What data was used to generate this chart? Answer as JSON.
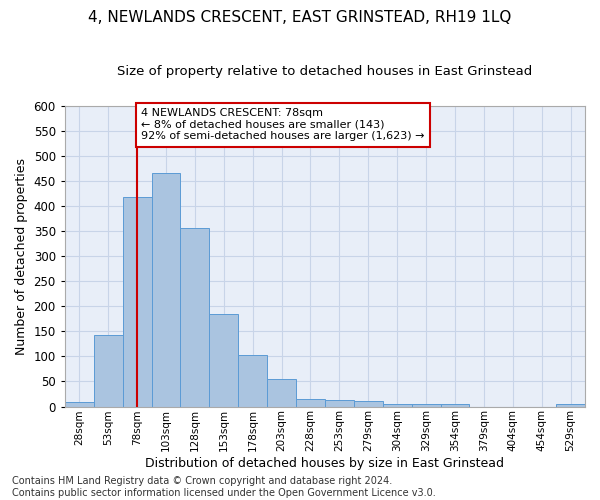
{
  "title": "4, NEWLANDS CRESCENT, EAST GRINSTEAD, RH19 1LQ",
  "subtitle": "Size of property relative to detached houses in East Grinstead",
  "xlabel": "Distribution of detached houses by size in East Grinstead",
  "ylabel": "Number of detached properties",
  "bar_values": [
    10,
    143,
    418,
    465,
    355,
    185,
    103,
    54,
    16,
    14,
    11,
    6,
    5,
    5,
    0,
    0,
    0,
    5
  ],
  "bar_labels": [
    "28sqm",
    "53sqm",
    "78sqm",
    "103sqm",
    "128sqm",
    "153sqm",
    "178sqm",
    "203sqm",
    "228sqm",
    "253sqm",
    "279sqm",
    "304sqm",
    "329sqm",
    "354sqm",
    "379sqm",
    "404sqm",
    "454sqm",
    "529sqm"
  ],
  "bar_color": "#aac4e0",
  "bar_edge_color": "#5b9bd5",
  "highlight_bar_index": 2,
  "vline_color": "#cc0000",
  "annotation_text": "4 NEWLANDS CRESCENT: 78sqm\n← 8% of detached houses are smaller (143)\n92% of semi-detached houses are larger (1,623) →",
  "annotation_box_color": "#ffffff",
  "annotation_box_edge": "#cc0000",
  "ylim": [
    0,
    600
  ],
  "yticks": [
    0,
    50,
    100,
    150,
    200,
    250,
    300,
    350,
    400,
    450,
    500,
    550,
    600
  ],
  "footer_line1": "Contains HM Land Registry data © Crown copyright and database right 2024.",
  "footer_line2": "Contains public sector information licensed under the Open Government Licence v3.0.",
  "title_fontsize": 11,
  "subtitle_fontsize": 9.5,
  "xlabel_fontsize": 9,
  "ylabel_fontsize": 9,
  "footer_fontsize": 7,
  "grid_color": "#c8d4e8",
  "bg_color": "#e8eef8"
}
